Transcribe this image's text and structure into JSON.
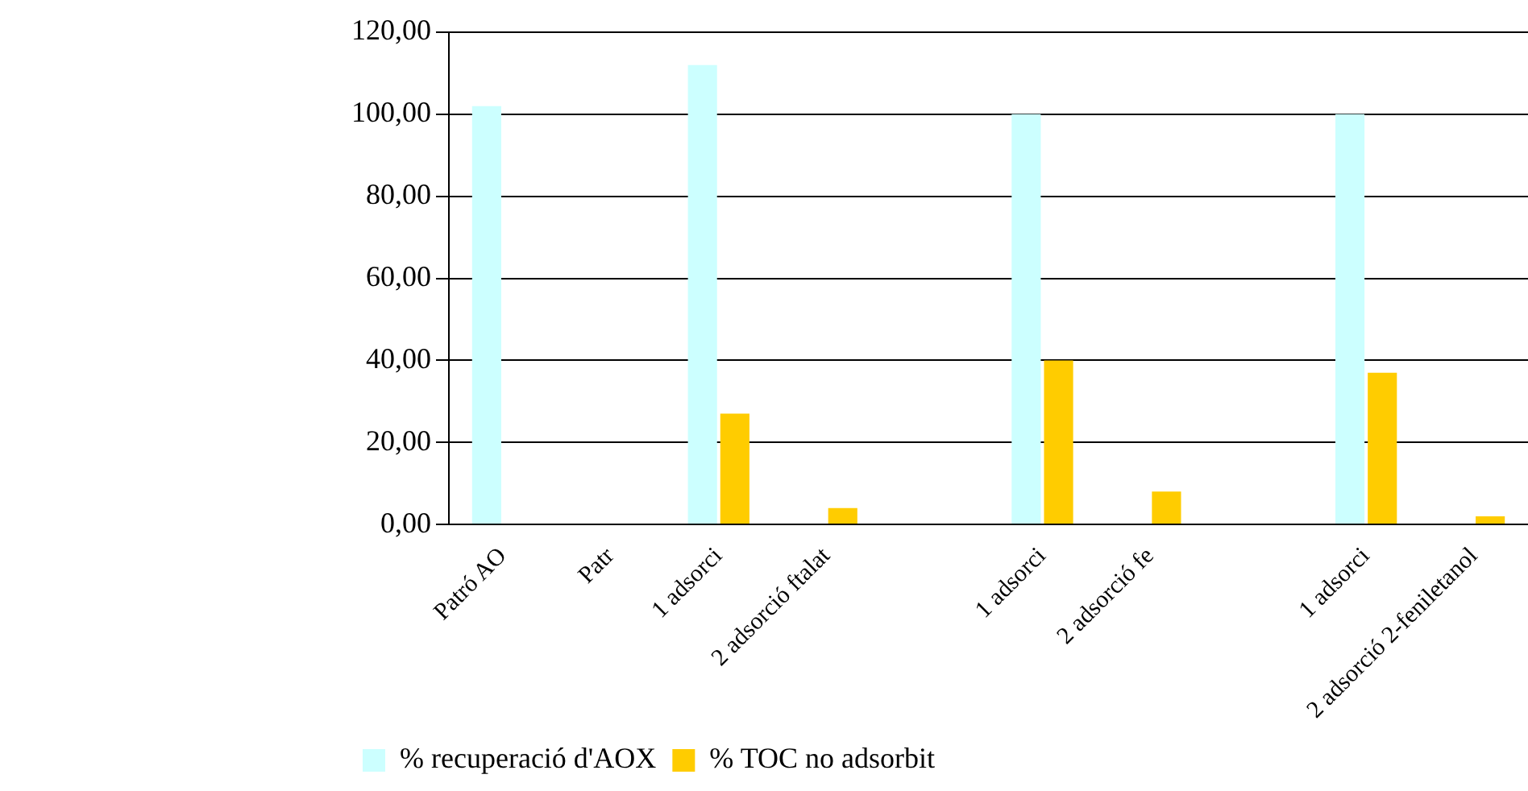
{
  "chart_data": {
    "type": "bar",
    "categories": [
      "Patró AO",
      "Patr",
      "1 adsorci",
      "2 adsorció ftalat",
      null,
      "1 adsorci",
      "2 adsorció fe",
      null,
      "1 adsorci",
      "2 adsorció 2-feniletanol"
    ],
    "series": [
      {
        "name": "% recuperació d'AOX",
        "color": "#ccffff",
        "values": [
          102,
          null,
          112,
          0,
          null,
          100,
          0,
          null,
          100,
          0
        ]
      },
      {
        "name": "% TOC no adsorbit",
        "color": "#ffcc00",
        "values": [
          null,
          0,
          27,
          4,
          null,
          40,
          8,
          null,
          37,
          2
        ]
      }
    ],
    "ylim": [
      0,
      120
    ],
    "yticks": [
      {
        "value": 0,
        "label": "0,00"
      },
      {
        "value": 20,
        "label": "20,00"
      },
      {
        "value": 40,
        "label": "40,00"
      },
      {
        "value": 60,
        "label": "60,00"
      },
      {
        "value": 80,
        "label": "80,00"
      },
      {
        "value": 100,
        "label": "100,00"
      },
      {
        "value": 120,
        "label": "120,00"
      }
    ],
    "grid": "y",
    "legend": "bottom left"
  }
}
